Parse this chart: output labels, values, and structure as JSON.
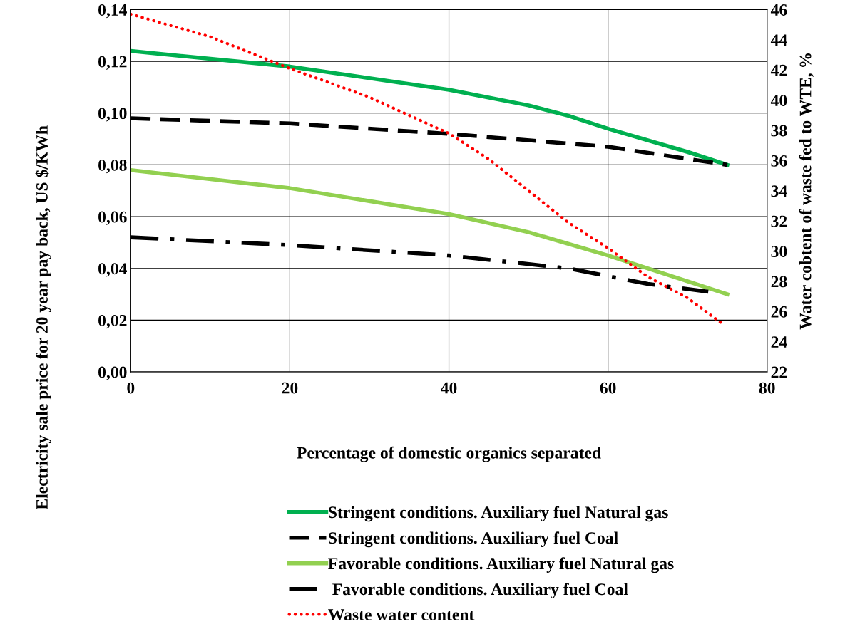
{
  "chart_data": {
    "type": "line",
    "xlabel": "Percentage of domestic organics separated",
    "ylabel": "Electricity sale price for 20 year pay back, US $/KWh",
    "y2label": "Water cobtent of waste fed to WTE, %",
    "xlim": [
      0,
      80
    ],
    "xticks": [
      0,
      20,
      40,
      60,
      80
    ],
    "ylim": [
      0,
      0.14
    ],
    "yticks": [
      {
        "value": 0,
        "label": "0,00"
      },
      {
        "value": 0.02,
        "label": "0,02"
      },
      {
        "value": 0.04,
        "label": "0,04"
      },
      {
        "value": 0.06,
        "label": "0,06"
      },
      {
        "value": 0.08,
        "label": "0,08"
      },
      {
        "value": 0.1,
        "label": "0,10"
      },
      {
        "value": 0.12,
        "label": "0,12"
      },
      {
        "value": 0.14,
        "label": "0,14"
      }
    ],
    "y2lim": [
      22,
      46
    ],
    "y2ticks": [
      22,
      24,
      26,
      28,
      30,
      32,
      34,
      36,
      38,
      40,
      42,
      44,
      46
    ],
    "grid": true,
    "legend": "bottom",
    "marker": "none",
    "series": [
      {
        "name": "Stringent conditions. Auxiliary fuel Natural gas",
        "color": "#00b050",
        "line_style": "solid",
        "x": [
          0,
          20,
          40,
          50,
          55,
          60,
          70,
          75
        ],
        "values": [
          0.124,
          0.118,
          0.109,
          0.103,
          0.099,
          0.094,
          0.085,
          0.08
        ]
      },
      {
        "name": "Stringent conditions. Auxiliary fuel Coal",
        "color": "#000000",
        "line_style": "dashed",
        "x": [
          0,
          20,
          40,
          60,
          75
        ],
        "values": [
          0.098,
          0.096,
          0.092,
          0.087,
          0.08
        ]
      },
      {
        "name": "Favorable conditions. Auxiliary fuel Natural gas",
        "color": "#92d050",
        "line_style": "solid",
        "x": [
          0,
          20,
          40,
          50,
          60,
          70,
          75
        ],
        "values": [
          0.078,
          0.071,
          0.061,
          0.054,
          0.045,
          0.035,
          0.03
        ]
      },
      {
        "name": " Favorable conditions. Auxiliary fuel Coal",
        "color": "#000000",
        "line_style": "dashdot",
        "x": [
          0,
          20,
          40,
          55,
          60,
          65,
          72.6
        ],
        "values": [
          0.052,
          0.049,
          0.045,
          0.04,
          0.037,
          0.034,
          0.031
        ]
      },
      {
        "name": "Waste water content",
        "color": "#ff0000",
        "line_style": "dotted",
        "axis": "y2",
        "x": [
          0,
          10,
          20,
          30,
          40,
          45,
          50,
          55,
          60,
          65,
          70,
          74.6
        ],
        "values": [
          45.7,
          44.2,
          42.1,
          40.2,
          37.8,
          36.1,
          34.0,
          31.9,
          30.2,
          28.3,
          26.9,
          25.1
        ]
      }
    ]
  }
}
